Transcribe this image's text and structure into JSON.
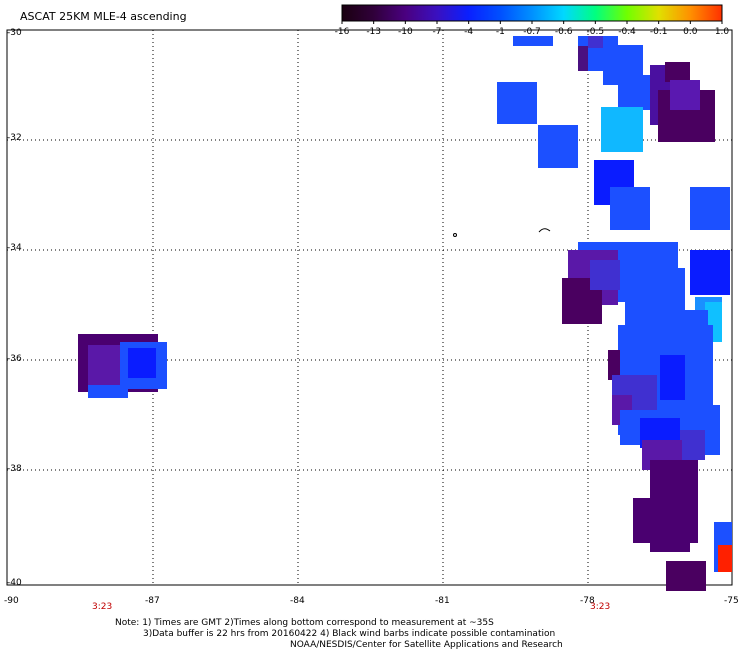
{
  "title": "ASCAT 25KM MLE-4 ascending",
  "colorbar": {
    "labels": [
      "-16",
      "-13",
      "-10",
      "-7",
      "-4",
      "-1",
      "-0.7",
      "-0.6",
      "-0.5",
      "-0.4",
      "-0.1",
      "0.0",
      "1.0"
    ],
    "colors": [
      "#1a0010",
      "#30003a",
      "#4a0080",
      "#3a10c0",
      "#0a20ff",
      "#0050ff",
      "#0090ff",
      "#00d8ff",
      "#00ff80",
      "#70ff00",
      "#e0e000",
      "#ff9000",
      "#ff3000"
    ]
  },
  "axes": {
    "lat_labels": [
      "-30",
      "-32",
      "-34",
      "-36",
      "-38",
      "-40"
    ],
    "lon_labels": [
      "-90",
      "-87",
      "-84",
      "-81",
      "-78",
      "-75"
    ],
    "time_labels": [
      "3:23",
      "3:23"
    ]
  },
  "notes": {
    "line1": "Note: 1) Times are GMT 2)Times along bottom correspond to measurement at ~35S",
    "line2": "3)Data buffer is 22 hrs from 20160422 4) Black wind barbs indicate possible contamination",
    "line3": "NOAA/NESDIS/Center for Satellite Applications and Research"
  },
  "palette": {
    "purple_dark": "#4a0060",
    "purple": "#5a10a0",
    "indigo": "#4020d0",
    "blue": "#0a1cff",
    "royal": "#1c50ff",
    "sky": "#1088ff",
    "cyan": "#10c0ff",
    "red": "#ff2000"
  }
}
